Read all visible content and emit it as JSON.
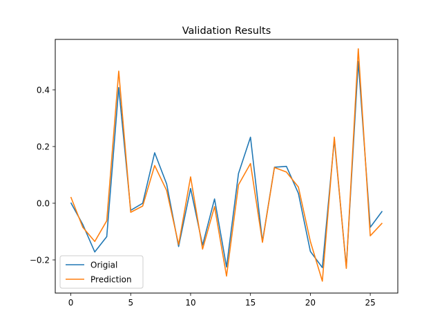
{
  "chart_data": {
    "type": "line",
    "title": "Validation Results",
    "xlabel": "",
    "ylabel": "",
    "xlim": [
      -1.3,
      27.3
    ],
    "ylim": [
      -0.317,
      0.578
    ],
    "x_ticks": [
      0,
      5,
      10,
      15,
      20,
      25
    ],
    "y_ticks": [
      -0.2,
      0.0,
      0.2,
      0.4
    ],
    "y_tick_labels": [
      "−0.2",
      "0.0",
      "0.2",
      "0.4"
    ],
    "grid": false,
    "legend_position": "lower-left",
    "x": [
      0,
      1,
      2,
      3,
      4,
      5,
      6,
      7,
      8,
      9,
      10,
      11,
      12,
      13,
      14,
      15,
      16,
      17,
      18,
      19,
      20,
      21,
      22,
      23,
      24,
      25,
      26
    ],
    "series": [
      {
        "name": "Origial",
        "color": "#1f77b4",
        "values": [
          0.002,
          -0.075,
          -0.172,
          -0.118,
          0.408,
          -0.025,
          0.0,
          0.178,
          0.068,
          -0.153,
          0.052,
          -0.148,
          0.015,
          -0.225,
          0.105,
          0.233,
          -0.135,
          0.127,
          0.13,
          0.035,
          -0.17,
          -0.227,
          0.225,
          -0.225,
          0.5,
          -0.085,
          -0.028
        ]
      },
      {
        "name": "Prediction",
        "color": "#ff7f0e",
        "values": [
          0.022,
          -0.085,
          -0.135,
          -0.062,
          0.466,
          -0.032,
          -0.01,
          0.133,
          0.045,
          -0.146,
          0.093,
          -0.162,
          -0.012,
          -0.257,
          0.065,
          0.14,
          -0.138,
          0.126,
          0.11,
          0.057,
          -0.135,
          -0.275,
          0.233,
          -0.23,
          0.545,
          -0.115,
          -0.07
        ]
      }
    ]
  }
}
